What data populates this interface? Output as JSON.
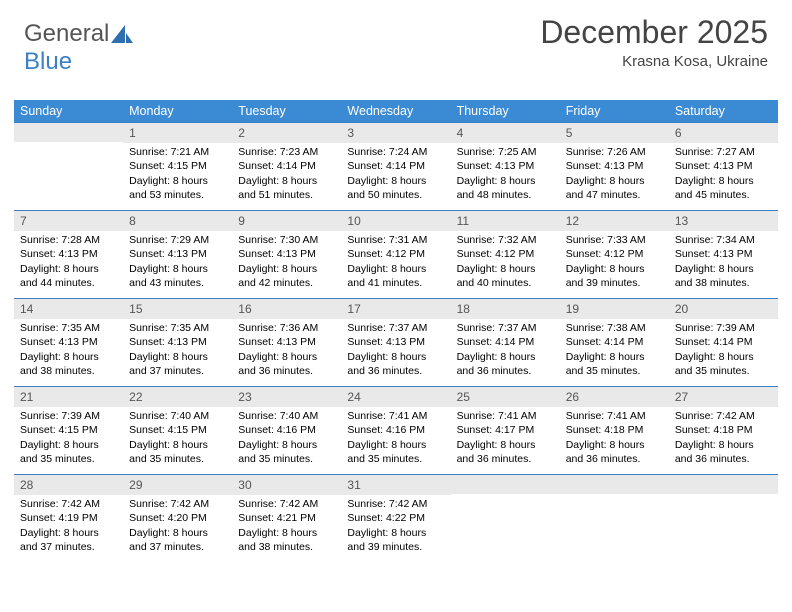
{
  "brand": {
    "part1": "General",
    "part2": "Blue"
  },
  "title": {
    "month": "December 2025",
    "location": "Krasna Kosa, Ukraine"
  },
  "colors": {
    "header_bg": "#3b8bd4",
    "header_fg": "#ffffff",
    "row_border": "#3b7fc4",
    "daynum_bg": "#e9e9e9"
  },
  "weekdays": [
    "Sunday",
    "Monday",
    "Tuesday",
    "Wednesday",
    "Thursday",
    "Friday",
    "Saturday"
  ],
  "weeks": [
    [
      {
        "day": "",
        "sunrise": "",
        "sunset": "",
        "daylight": ""
      },
      {
        "day": "1",
        "sunrise": "Sunrise: 7:21 AM",
        "sunset": "Sunset: 4:15 PM",
        "daylight": "Daylight: 8 hours and 53 minutes."
      },
      {
        "day": "2",
        "sunrise": "Sunrise: 7:23 AM",
        "sunset": "Sunset: 4:14 PM",
        "daylight": "Daylight: 8 hours and 51 minutes."
      },
      {
        "day": "3",
        "sunrise": "Sunrise: 7:24 AM",
        "sunset": "Sunset: 4:14 PM",
        "daylight": "Daylight: 8 hours and 50 minutes."
      },
      {
        "day": "4",
        "sunrise": "Sunrise: 7:25 AM",
        "sunset": "Sunset: 4:13 PM",
        "daylight": "Daylight: 8 hours and 48 minutes."
      },
      {
        "day": "5",
        "sunrise": "Sunrise: 7:26 AM",
        "sunset": "Sunset: 4:13 PM",
        "daylight": "Daylight: 8 hours and 47 minutes."
      },
      {
        "day": "6",
        "sunrise": "Sunrise: 7:27 AM",
        "sunset": "Sunset: 4:13 PM",
        "daylight": "Daylight: 8 hours and 45 minutes."
      }
    ],
    [
      {
        "day": "7",
        "sunrise": "Sunrise: 7:28 AM",
        "sunset": "Sunset: 4:13 PM",
        "daylight": "Daylight: 8 hours and 44 minutes."
      },
      {
        "day": "8",
        "sunrise": "Sunrise: 7:29 AM",
        "sunset": "Sunset: 4:13 PM",
        "daylight": "Daylight: 8 hours and 43 minutes."
      },
      {
        "day": "9",
        "sunrise": "Sunrise: 7:30 AM",
        "sunset": "Sunset: 4:13 PM",
        "daylight": "Daylight: 8 hours and 42 minutes."
      },
      {
        "day": "10",
        "sunrise": "Sunrise: 7:31 AM",
        "sunset": "Sunset: 4:12 PM",
        "daylight": "Daylight: 8 hours and 41 minutes."
      },
      {
        "day": "11",
        "sunrise": "Sunrise: 7:32 AM",
        "sunset": "Sunset: 4:12 PM",
        "daylight": "Daylight: 8 hours and 40 minutes."
      },
      {
        "day": "12",
        "sunrise": "Sunrise: 7:33 AM",
        "sunset": "Sunset: 4:12 PM",
        "daylight": "Daylight: 8 hours and 39 minutes."
      },
      {
        "day": "13",
        "sunrise": "Sunrise: 7:34 AM",
        "sunset": "Sunset: 4:13 PM",
        "daylight": "Daylight: 8 hours and 38 minutes."
      }
    ],
    [
      {
        "day": "14",
        "sunrise": "Sunrise: 7:35 AM",
        "sunset": "Sunset: 4:13 PM",
        "daylight": "Daylight: 8 hours and 38 minutes."
      },
      {
        "day": "15",
        "sunrise": "Sunrise: 7:35 AM",
        "sunset": "Sunset: 4:13 PM",
        "daylight": "Daylight: 8 hours and 37 minutes."
      },
      {
        "day": "16",
        "sunrise": "Sunrise: 7:36 AM",
        "sunset": "Sunset: 4:13 PM",
        "daylight": "Daylight: 8 hours and 36 minutes."
      },
      {
        "day": "17",
        "sunrise": "Sunrise: 7:37 AM",
        "sunset": "Sunset: 4:13 PM",
        "daylight": "Daylight: 8 hours and 36 minutes."
      },
      {
        "day": "18",
        "sunrise": "Sunrise: 7:37 AM",
        "sunset": "Sunset: 4:14 PM",
        "daylight": "Daylight: 8 hours and 36 minutes."
      },
      {
        "day": "19",
        "sunrise": "Sunrise: 7:38 AM",
        "sunset": "Sunset: 4:14 PM",
        "daylight": "Daylight: 8 hours and 35 minutes."
      },
      {
        "day": "20",
        "sunrise": "Sunrise: 7:39 AM",
        "sunset": "Sunset: 4:14 PM",
        "daylight": "Daylight: 8 hours and 35 minutes."
      }
    ],
    [
      {
        "day": "21",
        "sunrise": "Sunrise: 7:39 AM",
        "sunset": "Sunset: 4:15 PM",
        "daylight": "Daylight: 8 hours and 35 minutes."
      },
      {
        "day": "22",
        "sunrise": "Sunrise: 7:40 AM",
        "sunset": "Sunset: 4:15 PM",
        "daylight": "Daylight: 8 hours and 35 minutes."
      },
      {
        "day": "23",
        "sunrise": "Sunrise: 7:40 AM",
        "sunset": "Sunset: 4:16 PM",
        "daylight": "Daylight: 8 hours and 35 minutes."
      },
      {
        "day": "24",
        "sunrise": "Sunrise: 7:41 AM",
        "sunset": "Sunset: 4:16 PM",
        "daylight": "Daylight: 8 hours and 35 minutes."
      },
      {
        "day": "25",
        "sunrise": "Sunrise: 7:41 AM",
        "sunset": "Sunset: 4:17 PM",
        "daylight": "Daylight: 8 hours and 36 minutes."
      },
      {
        "day": "26",
        "sunrise": "Sunrise: 7:41 AM",
        "sunset": "Sunset: 4:18 PM",
        "daylight": "Daylight: 8 hours and 36 minutes."
      },
      {
        "day": "27",
        "sunrise": "Sunrise: 7:42 AM",
        "sunset": "Sunset: 4:18 PM",
        "daylight": "Daylight: 8 hours and 36 minutes."
      }
    ],
    [
      {
        "day": "28",
        "sunrise": "Sunrise: 7:42 AM",
        "sunset": "Sunset: 4:19 PM",
        "daylight": "Daylight: 8 hours and 37 minutes."
      },
      {
        "day": "29",
        "sunrise": "Sunrise: 7:42 AM",
        "sunset": "Sunset: 4:20 PM",
        "daylight": "Daylight: 8 hours and 37 minutes."
      },
      {
        "day": "30",
        "sunrise": "Sunrise: 7:42 AM",
        "sunset": "Sunset: 4:21 PM",
        "daylight": "Daylight: 8 hours and 38 minutes."
      },
      {
        "day": "31",
        "sunrise": "Sunrise: 7:42 AM",
        "sunset": "Sunset: 4:22 PM",
        "daylight": "Daylight: 8 hours and 39 minutes."
      },
      {
        "day": "",
        "sunrise": "",
        "sunset": "",
        "daylight": ""
      },
      {
        "day": "",
        "sunrise": "",
        "sunset": "",
        "daylight": ""
      },
      {
        "day": "",
        "sunrise": "",
        "sunset": "",
        "daylight": ""
      }
    ]
  ]
}
